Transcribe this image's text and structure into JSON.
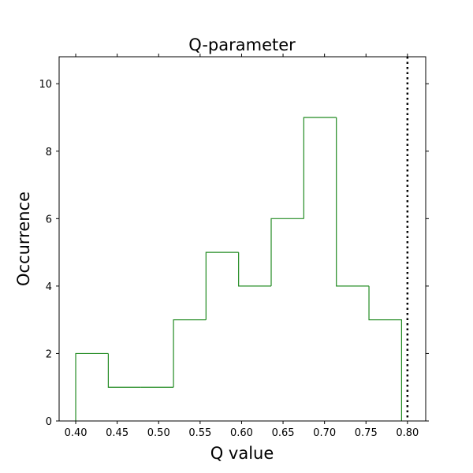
{
  "chart_data": {
    "type": "histogram",
    "title": "Q-parameter",
    "xlabel": "Q value",
    "ylabel": "Occurrence",
    "xlim": [
      0.38,
      0.822
    ],
    "ylim": [
      0,
      10.8
    ],
    "xticks": [
      0.4,
      0.45,
      0.5,
      0.55,
      0.6,
      0.65,
      0.7,
      0.75,
      0.8
    ],
    "xtick_labels": [
      "0.40",
      "0.45",
      "0.50",
      "0.55",
      "0.60",
      "0.65",
      "0.70",
      "0.75",
      "0.80"
    ],
    "yticks": [
      0,
      2,
      4,
      6,
      8,
      10
    ],
    "ytick_labels": [
      "0",
      "2",
      "4",
      "6",
      "8",
      "10"
    ],
    "bin_edges": [
      0.4,
      0.4393,
      0.4786,
      0.5179,
      0.5571,
      0.5964,
      0.6357,
      0.675,
      0.7143,
      0.7536,
      0.7929
    ],
    "counts": [
      2,
      1,
      1,
      3,
      5,
      4,
      6,
      9,
      4,
      3
    ],
    "histtype": "step",
    "bar_color": "#228B22",
    "reference_line": {
      "x": 0.8,
      "style": "dotted",
      "color": "#000000"
    },
    "grid": false,
    "legend": "none"
  }
}
